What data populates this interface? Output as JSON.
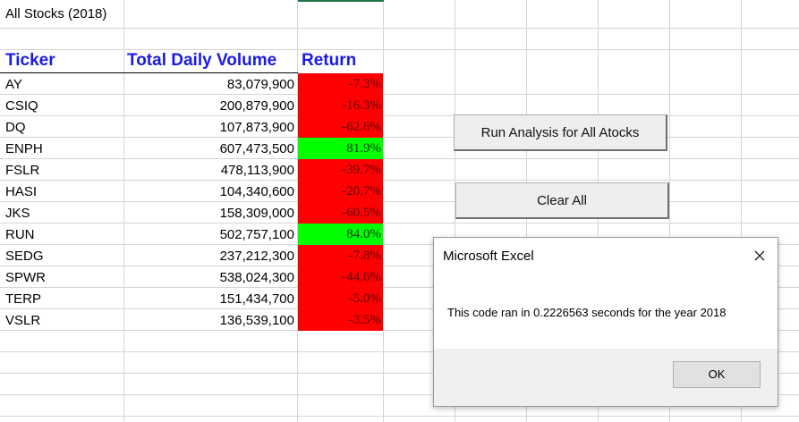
{
  "sheet": {
    "title": "All Stocks (2018)",
    "headers": {
      "ticker": "Ticker",
      "volume": "Total Daily Volume",
      "return": "Return"
    },
    "rows": [
      {
        "ticker": "AY",
        "volume": "83,079,900",
        "return": "-7.3%",
        "status": "negative"
      },
      {
        "ticker": "CSIQ",
        "volume": "200,879,900",
        "return": "-16.3%",
        "status": "negative"
      },
      {
        "ticker": "DQ",
        "volume": "107,873,900",
        "return": "-62.6%",
        "status": "negative"
      },
      {
        "ticker": "ENPH",
        "volume": "607,473,500",
        "return": "81.9%",
        "status": "positive"
      },
      {
        "ticker": "FSLR",
        "volume": "478,113,900",
        "return": "-39.7%",
        "status": "negative"
      },
      {
        "ticker": "HASI",
        "volume": "104,340,600",
        "return": "-20.7%",
        "status": "negative"
      },
      {
        "ticker": "JKS",
        "volume": "158,309,000",
        "return": "-60.5%",
        "status": "negative"
      },
      {
        "ticker": "RUN",
        "volume": "502,757,100",
        "return": "84.0%",
        "status": "positive"
      },
      {
        "ticker": "SEDG",
        "volume": "237,212,300",
        "return": "-7.8%",
        "status": "negative"
      },
      {
        "ticker": "SPWR",
        "volume": "538,024,300",
        "return": "-44.6%",
        "status": "negative"
      },
      {
        "ticker": "TERP",
        "volume": "151,434,700",
        "return": "-5.0%",
        "status": "negative"
      },
      {
        "ticker": "VSLR",
        "volume": "136,539,100",
        "return": "-3.5%",
        "status": "negative"
      }
    ],
    "colors": {
      "negative": "#ff0000",
      "positive": "#00ff00",
      "header_text": "#1a1ae6"
    }
  },
  "buttons": {
    "run_analysis": "Run Analysis for All Atocks",
    "clear_all": "Clear All"
  },
  "dialog": {
    "title": "Microsoft Excel",
    "message": "This code ran in 0.2226563 seconds for the year 2018",
    "ok_label": "OK",
    "close_icon": "close-icon"
  }
}
